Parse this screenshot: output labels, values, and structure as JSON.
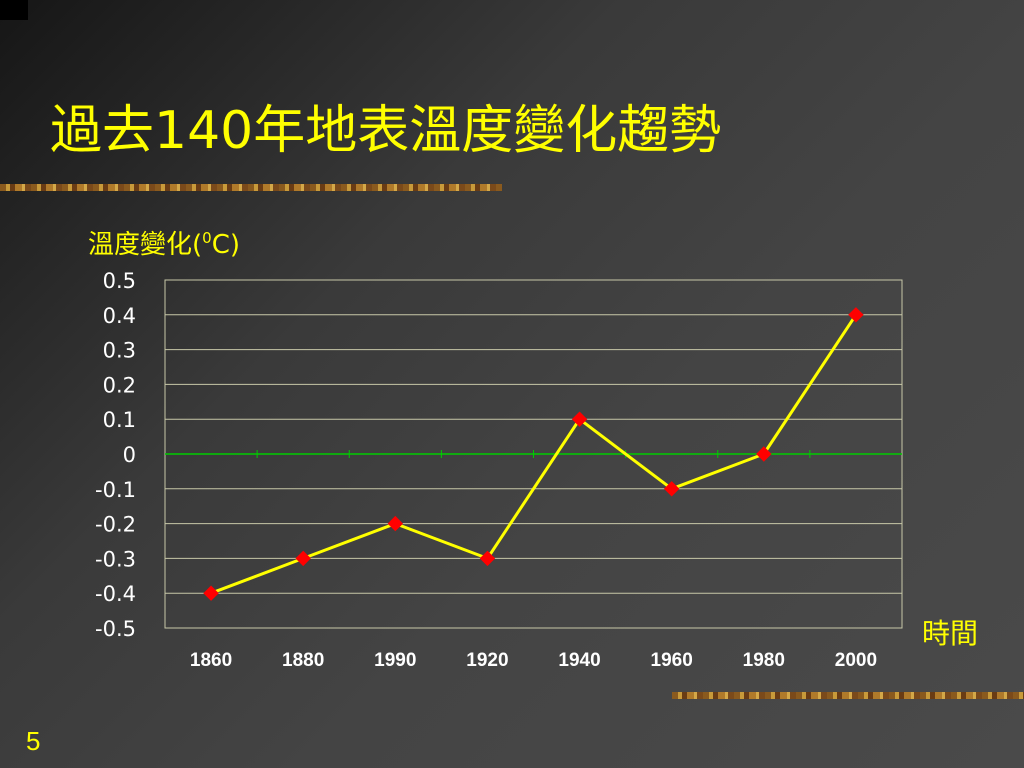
{
  "slide": {
    "title": "過去140年地表溫度變化趨勢",
    "page_number": "5"
  },
  "chart_data": {
    "type": "line",
    "title": "過去140年地表溫度變化趨勢",
    "ylabel": "溫度變化(",
    "ylabel_sup": "0",
    "ylabel_end": "C)",
    "xlabel": "時間",
    "categories": [
      "1860",
      "1880",
      "1990",
      "1920",
      "1940",
      "1960",
      "1980",
      "2000"
    ],
    "values": [
      -0.4,
      -0.3,
      -0.2,
      -0.3,
      0.1,
      -0.1,
      0,
      0.4
    ],
    "yticks": [
      "0.5",
      "0.4",
      "0.3",
      "0.2",
      "0.1",
      "0",
      "-0.1",
      "-0.2",
      "-0.3",
      "-0.4",
      "-0.5"
    ],
    "ylim": [
      -0.5,
      0.5
    ],
    "grid": true,
    "colors": {
      "line": "#ffff00",
      "marker": "#ff0000",
      "gridline": "#c8c8a8",
      "zero_line": "#00cc00",
      "tick_text": "#ffffff",
      "text": "#ffff00"
    }
  }
}
